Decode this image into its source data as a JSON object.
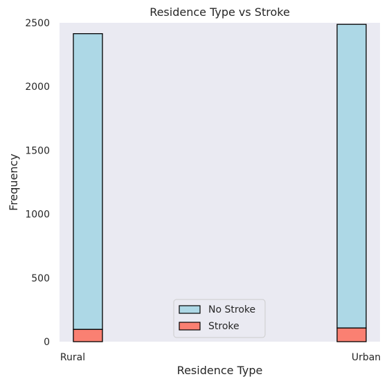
{
  "chart_data": {
    "type": "bar",
    "title": "Residence Type vs Stroke",
    "xlabel": "Residence Type",
    "ylabel": "Frequency",
    "categories": [
      "Rural",
      "Urban"
    ],
    "ylim": [
      0,
      2500
    ],
    "yticks": [
      0,
      500,
      1000,
      1500,
      2000,
      2500
    ],
    "stacked": true,
    "series": [
      {
        "name": "No Stroke",
        "values": [
          2319,
          2381
        ],
        "color": "#add8e6"
      },
      {
        "name": "Stroke",
        "values": [
          96,
          107
        ],
        "color": "#fa8072"
      }
    ],
    "legend": {
      "position": "lower-center"
    },
    "grid": false,
    "background": "#eaeaf2",
    "edge_color": "#000000"
  }
}
